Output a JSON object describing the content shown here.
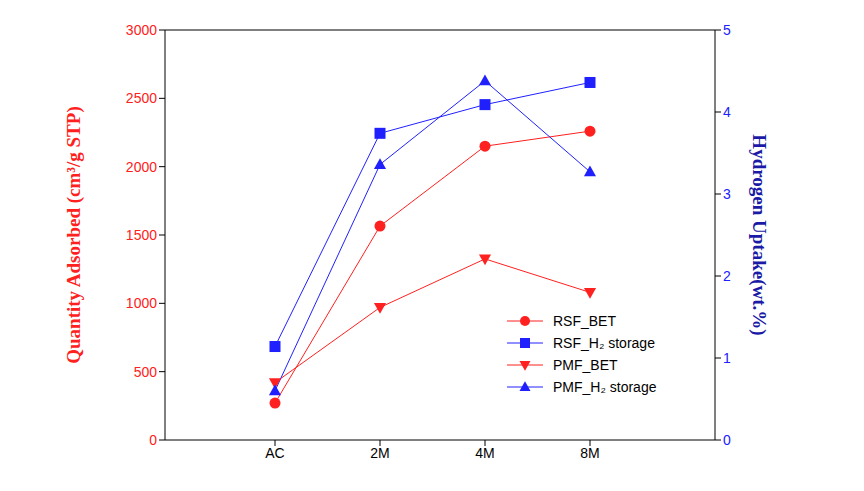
{
  "chart_data": {
    "type": "line",
    "categories": [
      "AC",
      "2M",
      "4M",
      "8M"
    ],
    "y_label": "Quantity Adsorbed (cm³/g STP)",
    "y2_label": "Hydrogen Uptake(wt.%)",
    "ylim": [
      0,
      3000
    ],
    "yticks": [
      0,
      500,
      1000,
      1500,
      2000,
      2500,
      3000
    ],
    "y2lim": [
      0,
      5
    ],
    "y2ticks": [
      0,
      1,
      2,
      3,
      4,
      5
    ],
    "grid": false,
    "legend": "lower right",
    "series": [
      {
        "name": "RSF_BET",
        "color": "#ff2020",
        "marker": "circle",
        "axis": "y",
        "values": [
          270,
          1565,
          2150,
          2260
        ]
      },
      {
        "name": "RSF_H₂ storage",
        "color": "#2020ff",
        "marker": "square",
        "axis": "y2",
        "values": [
          1.14,
          3.74,
          4.09,
          4.36
        ]
      },
      {
        "name": "PMF_BET",
        "color": "#ff2020",
        "marker": "triangle-down",
        "axis": "y",
        "values": [
          420,
          970,
          1325,
          1080
        ]
      },
      {
        "name": "PMF_H₂ storage",
        "color": "#2020ff",
        "marker": "triangle",
        "axis": "y2",
        "values": [
          0.6,
          3.36,
          4.38,
          3.27
        ]
      }
    ]
  }
}
